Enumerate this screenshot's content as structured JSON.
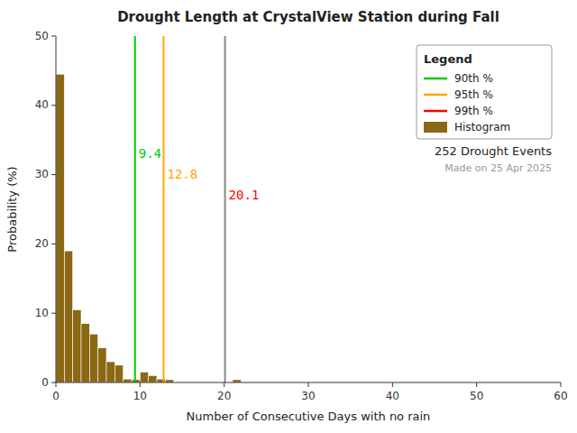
{
  "chart_data": {
    "type": "histogram",
    "title": "Drought Length at CrystalView Station during Fall",
    "xlabel": "Number of Consecutive Days with no rain",
    "ylabel": "Probability (%)",
    "xlim": [
      0,
      60
    ],
    "ylim": [
      0,
      50
    ],
    "xticks": [
      0,
      10,
      20,
      30,
      40,
      50,
      60
    ],
    "yticks": [
      0,
      10,
      20,
      30,
      40,
      50
    ],
    "grid": false,
    "legend": "upper right",
    "legend_title": "Legend",
    "series": [
      {
        "name": "Histogram",
        "color": "#8B6914",
        "x": [
          0,
          1,
          2,
          3,
          4,
          5,
          6,
          7,
          8,
          9,
          10,
          11,
          12,
          13,
          21
        ],
        "x_end": [
          1,
          2,
          3,
          4,
          5,
          6,
          7,
          8,
          9,
          10,
          11,
          12,
          13,
          14,
          22
        ],
        "values": [
          44.5,
          19.0,
          10.5,
          8.5,
          7.0,
          5.0,
          3.0,
          2.5,
          0.5,
          0.4,
          1.5,
          1.0,
          0.5,
          0.4,
          0.4
        ]
      }
    ],
    "lines": [
      {
        "name": "90th %",
        "x": 9.4,
        "label": "9.4",
        "color": "#00cc00"
      },
      {
        "name": "95th %",
        "x": 12.8,
        "label": "12.8",
        "color": "#FFA500"
      },
      {
        "name": "99th %",
        "x": 20.1,
        "label": "20.1",
        "color": "#888888",
        "label_color": "#FF0000"
      }
    ],
    "annotations": [
      "252 Drought Events",
      "Made on 25 Apr 2025"
    ]
  }
}
